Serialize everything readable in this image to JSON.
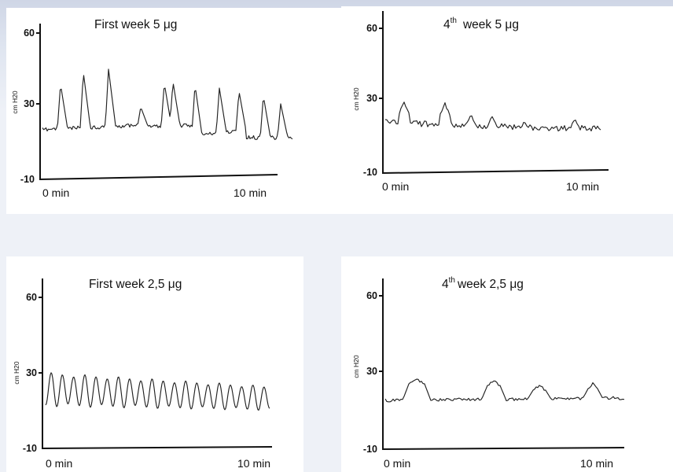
{
  "chart_data": [
    {
      "type": "line",
      "title": "First week 5 μg",
      "ylabel": "cm H20",
      "y_ticks": [
        "60",
        "30",
        "-10"
      ],
      "x_ticks": [
        "0 min",
        "10 min"
      ],
      "ylim": [
        -10,
        60
      ],
      "xlim": [
        0,
        10
      ],
      "grid": false,
      "series": [
        {
          "style": "spiky"
        }
      ]
    },
    {
      "type": "line",
      "title": "week 5 μg",
      "title_prefix": "4",
      "title_sup": "th",
      "ylabel": "cm H20",
      "y_ticks": [
        "60",
        "30",
        "-10"
      ],
      "x_ticks": [
        "0 min",
        "10 min"
      ],
      "ylim": [
        -10,
        60
      ],
      "xlim": [
        0,
        10
      ],
      "grid": false,
      "series": [
        {
          "style": "flat-noisy"
        }
      ]
    },
    {
      "type": "line",
      "title": "First week 2,5 μg",
      "ylabel": "cm H20",
      "y_ticks": [
        "60",
        "30",
        "-10"
      ],
      "x_ticks": [
        "0 min",
        "10 min"
      ],
      "ylim": [
        -10,
        60
      ],
      "xlim": [
        0,
        10
      ],
      "grid": false,
      "series": [
        {
          "style": "oscillating"
        }
      ]
    },
    {
      "type": "line",
      "title": "week 2,5 μg",
      "title_prefix": "4",
      "title_sup": "th",
      "ylabel": "cm H20",
      "y_ticks": [
        "60",
        "30",
        "-10"
      ],
      "x_ticks": [
        "0 min",
        "10 min"
      ],
      "ylim": [
        -10,
        60
      ],
      "xlim": [
        0,
        10
      ],
      "grid": false,
      "series": [
        {
          "style": "flat-bumps"
        }
      ]
    }
  ]
}
